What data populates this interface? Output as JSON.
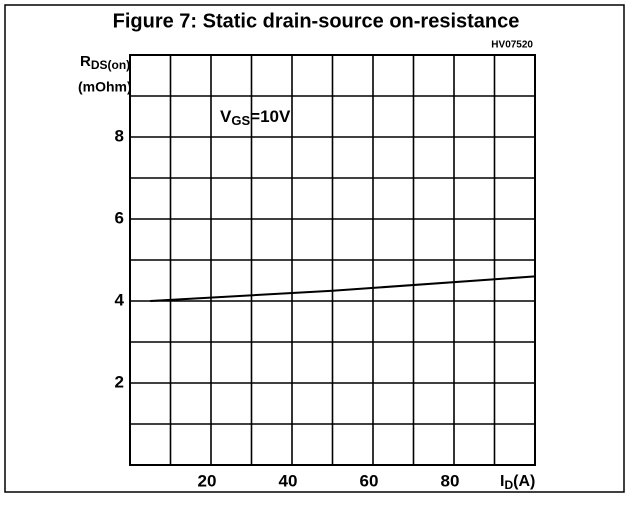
{
  "chart_data": {
    "type": "line",
    "title": "Figure 7: Static drain-source on-resistance",
    "code": "HV07520",
    "y_label": {
      "text": "R",
      "subscript": "DS(on)"
    },
    "y_unit": "(mOhm)",
    "x_label": {
      "text": "I",
      "subscript": "D",
      "suffix": "(A)"
    },
    "annotation": {
      "text": "V",
      "subscript": "GS",
      "suffix": "=10V"
    },
    "x": [
      5,
      50,
      100
    ],
    "series": [
      {
        "color": "#000000",
        "values": [
          4.0,
          4.25,
          4.6
        ]
      }
    ],
    "xlim": [
      0,
      100
    ],
    "ylim": [
      0,
      10
    ],
    "xticks": [
      20,
      40,
      60,
      80
    ],
    "yticks": [
      2,
      4,
      6,
      8
    ],
    "xgrid": [
      10,
      20,
      30,
      40,
      50,
      60,
      70,
      80,
      90
    ],
    "ygrid": [
      1,
      2,
      3,
      4,
      5,
      6,
      7,
      8,
      9
    ],
    "grid": true
  }
}
